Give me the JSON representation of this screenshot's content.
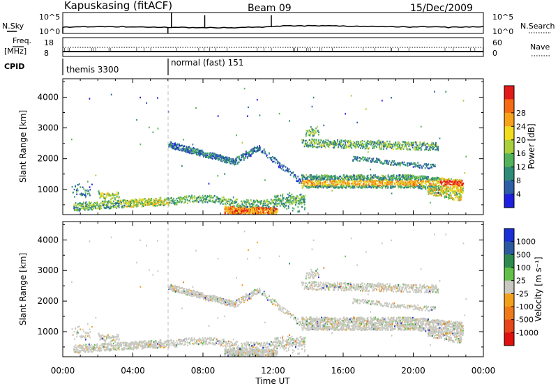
{
  "header": {
    "station": "Kapuskasing (fitACF)",
    "beam": "Beam 09",
    "date": "15/Dec/2009"
  },
  "top_panels": {
    "nsky": {
      "label": "N.Sky",
      "tick_top": "10^5",
      "tick_bottom": "10^0",
      "right_label": "N.Search"
    },
    "freq": {
      "label_line1": "Freq.",
      "label_line2": "[MHz]",
      "tick_top": "18",
      "tick_bottom": "8",
      "right_tick_top": "60",
      "right_tick_bottom": "0",
      "right_label": "Nave"
    },
    "cpid": {
      "label": "CPID",
      "segments": [
        {
          "text": "themis 3300",
          "start_hour": 0
        },
        {
          "text": "normal (fast) 151",
          "start_hour": 6
        }
      ]
    }
  },
  "x_axis": {
    "label": "Time UT",
    "ticks": [
      "00:00",
      "04:00",
      "08:00",
      "12:00",
      "16:00",
      "20:00",
      "00:00"
    ]
  },
  "chart_data": [
    {
      "type": "heatmap",
      "name": "power",
      "ylabel": "Slant Range [km]",
      "ylim": [
        180,
        4600
      ],
      "xlim_hours": [
        0,
        24
      ],
      "yticks": [
        "1000",
        "2000",
        "3000",
        "4000"
      ],
      "colorbar": {
        "label": "Power [dB]",
        "ticks": [
          "4",
          "8",
          "12",
          "16",
          "20",
          "24",
          "28"
        ],
        "colors": [
          "#1f1fe0",
          "#2d5fa6",
          "#2e8b7a",
          "#52b35a",
          "#a9cf3b",
          "#f2dc1e",
          "#f7a21a",
          "#f56a14",
          "#e21a1a"
        ]
      },
      "echo_regions": [
        {
          "name": "near-range band",
          "hours": [
            0.5,
            6.0
          ],
          "range_km": [
            300,
            900
          ]
        },
        {
          "name": "strong near-range echoes",
          "hours": [
            9.5,
            12.0
          ],
          "range_km": [
            200,
            500
          ]
        },
        {
          "name": "rising band",
          "hours": [
            6.0,
            10.5
          ],
          "range_km": [
            1800,
            2600
          ]
        },
        {
          "name": "main band",
          "hours": [
            13.5,
            23.0
          ],
          "range_km": [
            900,
            1500
          ]
        },
        {
          "name": "upper band",
          "hours": [
            13.5,
            21.5
          ],
          "range_km": [
            2200,
            2900
          ]
        }
      ]
    },
    {
      "type": "heatmap",
      "name": "velocity",
      "ylabel": "Slant Range [km]",
      "ylim": [
        180,
        4600
      ],
      "xlim_hours": [
        0,
        24
      ],
      "yticks": [
        "1000",
        "2000",
        "3000",
        "4000"
      ],
      "colorbar": {
        "label": "Velocity [m s⁻¹]",
        "ticks": [
          "1000",
          "500",
          "100",
          "25",
          "-25",
          "-100",
          "-500",
          "-1000"
        ],
        "colors": [
          "#1a2fd6",
          "#2d5a9e",
          "#2f8a4d",
          "#62c04a",
          "#c8c8c0",
          "#f2a01c",
          "#f07a1a",
          "#e8451a",
          "#e01010"
        ]
      }
    }
  ]
}
